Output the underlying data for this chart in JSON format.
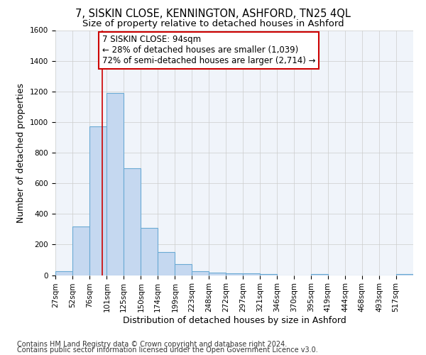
{
  "title": "7, SISKIN CLOSE, KENNINGTON, ASHFORD, TN25 4QL",
  "subtitle": "Size of property relative to detached houses in Ashford",
  "xlabel": "Distribution of detached houses by size in Ashford",
  "ylabel": "Number of detached properties",
  "footer1": "Contains HM Land Registry data © Crown copyright and database right 2024.",
  "footer2": "Contains public sector information licensed under the Open Government Licence v3.0.",
  "annotation_title": "7 SISKIN CLOSE: 94sqm",
  "annotation_line1": "← 28% of detached houses are smaller (1,039)",
  "annotation_line2": "72% of semi-detached houses are larger (2,714) →",
  "property_size": 94,
  "bar_left_edges": [
    27,
    52,
    76,
    101,
    125,
    150,
    174,
    199,
    223,
    248,
    272,
    297,
    321,
    346,
    370,
    395,
    419,
    444,
    468,
    493,
    517
  ],
  "bar_widths": [
    25,
    24,
    25,
    24,
    25,
    24,
    25,
    24,
    25,
    24,
    25,
    24,
    25,
    24,
    25,
    24,
    25,
    24,
    25,
    24,
    25
  ],
  "bar_heights": [
    25,
    320,
    970,
    1190,
    700,
    310,
    150,
    70,
    25,
    15,
    10,
    10,
    5,
    0,
    0,
    5,
    0,
    0,
    0,
    0,
    5
  ],
  "bar_color": "#c5d8f0",
  "bar_edge_color": "#6aaad4",
  "vline_color": "#cc0000",
  "vline_x": 94,
  "ylim": [
    0,
    1600
  ],
  "yticks": [
    0,
    200,
    400,
    600,
    800,
    1000,
    1200,
    1400,
    1600
  ],
  "xlim": [
    27,
    542
  ],
  "tick_labels": [
    "27sqm",
    "52sqm",
    "76sqm",
    "101sqm",
    "125sqm",
    "150sqm",
    "174sqm",
    "199sqm",
    "223sqm",
    "248sqm",
    "272sqm",
    "297sqm",
    "321sqm",
    "346sqm",
    "370sqm",
    "395sqm",
    "419sqm",
    "444sqm",
    "468sqm",
    "493sqm",
    "517sqm"
  ],
  "grid_color": "#cccccc",
  "bg_color": "#f0f4fa",
  "annotation_box_color": "#ffffff",
  "annotation_box_edge": "#cc0000",
  "title_fontsize": 10.5,
  "subtitle_fontsize": 9.5,
  "axis_label_fontsize": 9,
  "tick_fontsize": 7.5,
  "annotation_fontsize": 8.5,
  "footer_fontsize": 7
}
